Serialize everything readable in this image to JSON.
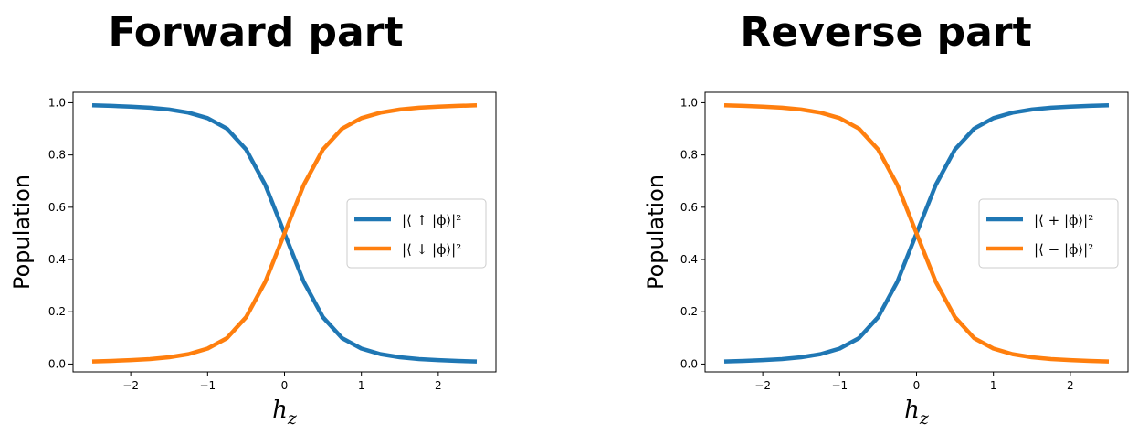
{
  "chart_data": [
    {
      "type": "line",
      "title": "Forward part",
      "xlabel_main": "h",
      "xlabel_sub": "z",
      "ylabel": "Population",
      "xlim": [
        -2.75,
        2.75
      ],
      "ylim": [
        -0.03,
        1.04
      ],
      "xticks": [
        -2,
        -1,
        0,
        1,
        2
      ],
      "xtick_labels": [
        "−2",
        "−1",
        "0",
        "1",
        "2"
      ],
      "yticks": [
        0.0,
        0.2,
        0.4,
        0.6,
        0.8,
        1.0
      ],
      "ytick_labels": [
        "0.0",
        "0.2",
        "0.4",
        "0.6",
        "0.8",
        "1.0"
      ],
      "legend_position": "center-right",
      "x": [
        -2.5,
        -2.25,
        -2.0,
        -1.75,
        -1.5,
        -1.25,
        -1.0,
        -0.75,
        -0.5,
        -0.25,
        0.0,
        0.25,
        0.5,
        0.75,
        1.0,
        1.25,
        1.5,
        1.75,
        2.0,
        2.25,
        2.5
      ],
      "series": [
        {
          "name": "|⟨ ↑ |ϕ⟩|²",
          "color": "#1f77b4",
          "values": [
            0.99,
            0.988,
            0.985,
            0.981,
            0.974,
            0.962,
            0.941,
            0.901,
            0.821,
            0.685,
            0.5,
            0.315,
            0.179,
            0.099,
            0.059,
            0.038,
            0.026,
            0.019,
            0.015,
            0.012,
            0.01
          ]
        },
        {
          "name": "|⟨ ↓ |ϕ⟩|²",
          "color": "#ff7f0e",
          "values": [
            0.01,
            0.012,
            0.015,
            0.019,
            0.026,
            0.038,
            0.059,
            0.099,
            0.179,
            0.315,
            0.5,
            0.685,
            0.821,
            0.901,
            0.941,
            0.962,
            0.974,
            0.981,
            0.985,
            0.988,
            0.99
          ]
        }
      ]
    },
    {
      "type": "line",
      "title": "Reverse part",
      "xlabel_main": "h",
      "xlabel_sub": "z",
      "ylabel": "Population",
      "xlim": [
        -2.75,
        2.75
      ],
      "ylim": [
        -0.03,
        1.04
      ],
      "xticks": [
        -2,
        -1,
        0,
        1,
        2
      ],
      "xtick_labels": [
        "−2",
        "−1",
        "0",
        "1",
        "2"
      ],
      "yticks": [
        0.0,
        0.2,
        0.4,
        0.6,
        0.8,
        1.0
      ],
      "ytick_labels": [
        "0.0",
        "0.2",
        "0.4",
        "0.6",
        "0.8",
        "1.0"
      ],
      "legend_position": "center-right",
      "x": [
        -2.5,
        -2.25,
        -2.0,
        -1.75,
        -1.5,
        -1.25,
        -1.0,
        -0.75,
        -0.5,
        -0.25,
        0.0,
        0.25,
        0.5,
        0.75,
        1.0,
        1.25,
        1.5,
        1.75,
        2.0,
        2.25,
        2.5
      ],
      "series": [
        {
          "name": "|⟨ + |ϕ⟩|²",
          "color": "#1f77b4",
          "values": [
            0.01,
            0.012,
            0.015,
            0.019,
            0.026,
            0.038,
            0.059,
            0.099,
            0.179,
            0.315,
            0.5,
            0.685,
            0.821,
            0.901,
            0.941,
            0.962,
            0.974,
            0.981,
            0.985,
            0.988,
            0.99
          ]
        },
        {
          "name": "|⟨ − |ϕ⟩|²",
          "color": "#ff7f0e",
          "values": [
            0.99,
            0.988,
            0.985,
            0.981,
            0.974,
            0.962,
            0.941,
            0.901,
            0.821,
            0.685,
            0.5,
            0.315,
            0.179,
            0.099,
            0.059,
            0.038,
            0.026,
            0.019,
            0.015,
            0.012,
            0.01
          ]
        }
      ]
    }
  ]
}
